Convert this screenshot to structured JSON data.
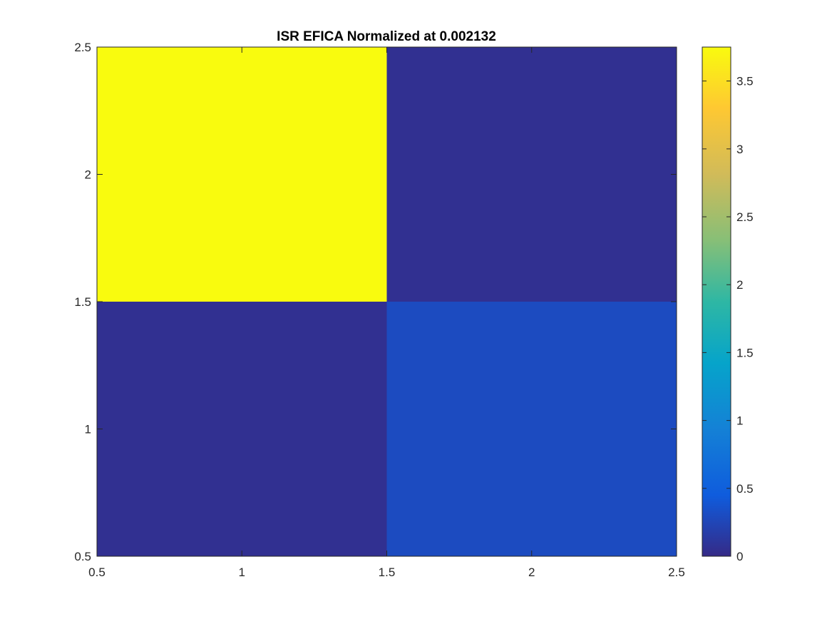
{
  "chart_data": {
    "type": "heatmap",
    "title": "ISR EFICA Normalized at 0.002132",
    "xlabel": "",
    "ylabel": "",
    "xlim": [
      0.5,
      2.5
    ],
    "ylim": [
      0.5,
      2.5
    ],
    "x_ticks": [
      0.5,
      1,
      1.5,
      2,
      2.5
    ],
    "y_ticks": [
      0.5,
      1,
      1.5,
      2,
      2.5
    ],
    "x_tick_labels": [
      "0.5",
      "1",
      "1.5",
      "2",
      "2.5"
    ],
    "y_tick_labels": [
      "0.5",
      "1",
      "1.5",
      "2",
      "2.5"
    ],
    "grid": false,
    "cells": [
      {
        "x": 1,
        "y": 2,
        "value": 3.75
      },
      {
        "x": 2,
        "y": 2,
        "value": 0.05
      },
      {
        "x": 1,
        "y": 1,
        "value": 0.05
      },
      {
        "x": 2,
        "y": 1,
        "value": 0.3
      }
    ],
    "colorbar": {
      "colormap": "parula",
      "clim": [
        0,
        3.75
      ],
      "ticks": [
        0,
        0.5,
        1,
        1.5,
        2,
        2.5,
        3,
        3.5
      ],
      "tick_labels": [
        "0",
        "0.5",
        "1",
        "1.5",
        "2",
        "2.5",
        "3",
        "3.5"
      ],
      "placement": "right"
    }
  }
}
